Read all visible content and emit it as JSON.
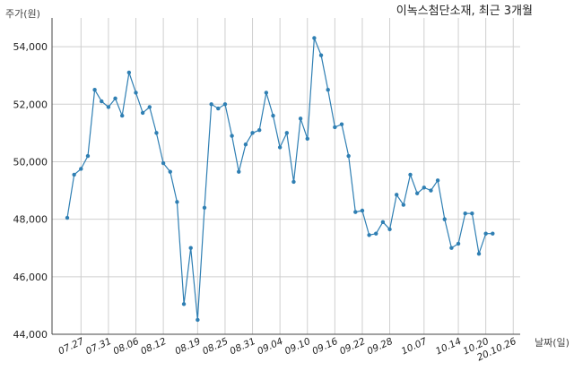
{
  "chart_data": {
    "type": "line",
    "title": "이녹스첨단소재, 최근 3개월",
    "ylabel": "주가(원)",
    "xlabel": "날짜(일)",
    "ylim": [
      44000,
      55000
    ],
    "yticks": [
      44000,
      46000,
      48000,
      50000,
      52000,
      54000
    ],
    "ytick_labels": [
      "44,000",
      "46,000",
      "48,000",
      "50,000",
      "52,000",
      "54,000"
    ],
    "xtick_labels": [
      "07.27",
      "07.31",
      "08.06",
      "08.12",
      "08.19",
      "08.25",
      "08.31",
      "09.04",
      "09.10",
      "09.16",
      "09.22",
      "09.28",
      "10.07",
      "10.14",
      "10.20",
      "20.10.26"
    ],
    "xtick_index": [
      2,
      6,
      10,
      14,
      19,
      23,
      27,
      31,
      35,
      39,
      43,
      47,
      52,
      57,
      61,
      65
    ],
    "grid": true,
    "values": [
      48050,
      49550,
      49750,
      50200,
      52500,
      52100,
      51900,
      52200,
      51600,
      53100,
      52400,
      51700,
      51900,
      51000,
      49950,
      49650,
      48600,
      45050,
      47000,
      44500,
      48400,
      52000,
      51850,
      52000,
      50900,
      49650,
      50600,
      51000,
      51100,
      52400,
      51600,
      50500,
      51000,
      49300,
      51500,
      50800,
      54300,
      53700,
      52500,
      51200,
      51300,
      50200,
      48250,
      48300,
      47450,
      47500,
      47900,
      47650,
      48850,
      48500,
      49550,
      48900,
      49100,
      49000,
      49350,
      48000,
      47000,
      47150,
      48200,
      48200,
      46800,
      47500,
      47500
    ]
  }
}
